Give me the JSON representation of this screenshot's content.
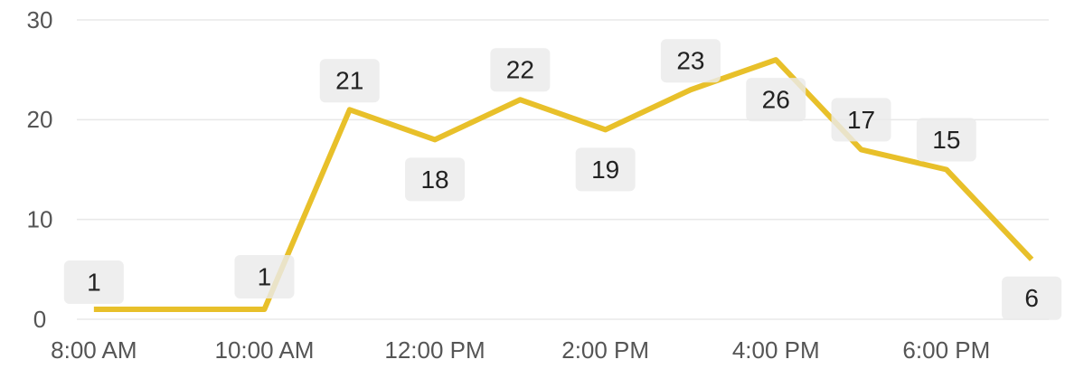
{
  "chart_data": {
    "type": "line",
    "x": [
      8,
      10,
      11,
      12,
      13,
      14,
      15,
      16,
      17,
      18,
      19
    ],
    "series": [
      {
        "color": "#e8c02a",
        "values": [
          1,
          1,
          21,
          18,
          22,
          19,
          23,
          26,
          17,
          15,
          6
        ]
      }
    ],
    "xlim": [
      7.8,
      19.2
    ],
    "xticks": [
      {
        "value": 8,
        "label": "8:00 AM"
      },
      {
        "value": 10,
        "label": "10:00 AM"
      },
      {
        "value": 12,
        "label": "12:00 PM"
      },
      {
        "value": 14,
        "label": "2:00 PM"
      },
      {
        "value": 16,
        "label": "4:00 PM"
      },
      {
        "value": 18,
        "label": "6:00 PM"
      }
    ],
    "ylim": [
      0,
      30
    ],
    "yticks": [
      0,
      10,
      20,
      30
    ],
    "grid": true
  }
}
